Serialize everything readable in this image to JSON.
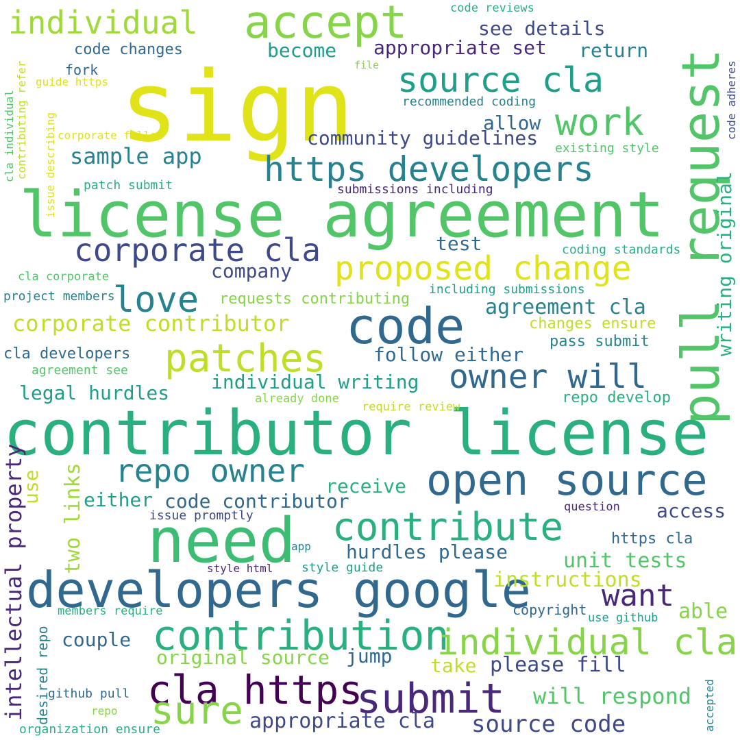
{
  "palette": {
    "background": "#ffffff",
    "yellow": "#dfe318",
    "lime": "#bddf26",
    "light-green": "#86d549",
    "green": "#52c569",
    "teal-green": "#2ab07f",
    "teal": "#1f9e89",
    "blue-teal": "#26828e",
    "slate": "#31688e",
    "indigo": "#3e4989",
    "purple": "#482878",
    "dark-purple": "#440154"
  },
  "words": [
    {
      "text": "sign",
      "weight": 1.0,
      "color": "#dfe318"
    },
    {
      "text": "license agreement",
      "weight": 0.92,
      "color": "#52c569"
    },
    {
      "text": "contributor license",
      "weight": 0.9,
      "color": "#2ab07f"
    },
    {
      "text": "need",
      "weight": 0.82,
      "color": "#3dbc74"
    },
    {
      "text": "pull request",
      "weight": 0.8,
      "color": "#52c569"
    },
    {
      "text": "developers google",
      "weight": 0.72,
      "color": "#31688e"
    },
    {
      "text": "code",
      "weight": 0.72,
      "color": "#31688e"
    },
    {
      "text": "accept",
      "weight": 0.68,
      "color": "#86d549"
    },
    {
      "text": "open source",
      "weight": 0.64,
      "color": "#31688e"
    },
    {
      "text": "contribution",
      "weight": 0.62,
      "color": "#2ab07f"
    },
    {
      "text": "submit",
      "weight": 0.62,
      "color": "#482878"
    },
    {
      "text": "cla https",
      "weight": 0.6,
      "color": "#440154"
    },
    {
      "text": "sure",
      "weight": 0.58,
      "color": "#86d549"
    },
    {
      "text": "patches",
      "weight": 0.56,
      "color": "#bddf26"
    },
    {
      "text": "contribute",
      "weight": 0.56,
      "color": "#2ab07f"
    },
    {
      "text": "individual cla",
      "weight": 0.54,
      "color": "#86d549"
    },
    {
      "text": "work",
      "weight": 0.54,
      "color": "#52c569"
    },
    {
      "text": "https developers",
      "weight": 0.5,
      "color": "#26828e"
    },
    {
      "text": "source cla",
      "weight": 0.5,
      "color": "#1f9e89"
    },
    {
      "text": "individual",
      "weight": 0.48,
      "color": "#a0da39"
    },
    {
      "text": "love",
      "weight": 0.52,
      "color": "#26828e"
    },
    {
      "text": "corporate cla",
      "weight": 0.48,
      "color": "#3e4989"
    },
    {
      "text": "repo owner",
      "weight": 0.48,
      "color": "#26828e"
    },
    {
      "text": "owner will",
      "weight": 0.48,
      "color": "#31688e"
    },
    {
      "text": "proposed change",
      "weight": 0.48,
      "color": "#dfe318"
    },
    {
      "text": "want",
      "weight": 0.46,
      "color": "#482878"
    },
    {
      "text": "intellectual property",
      "weight": 0.34,
      "color": "#482878"
    },
    {
      "text": "source code",
      "weight": 0.36,
      "color": "#3e4989"
    },
    {
      "text": "will respond",
      "weight": 0.34,
      "color": "#52c569"
    },
    {
      "text": "corporate contributor",
      "weight": 0.34,
      "color": "#bddf26"
    },
    {
      "text": "appropriate cla",
      "weight": 0.32,
      "color": "#3e4989"
    },
    {
      "text": "writing original",
      "weight": 0.3,
      "color": "#2ab07f"
    },
    {
      "text": "two links",
      "weight": 0.32,
      "color": "#a0da39"
    },
    {
      "text": "sample app",
      "weight": 0.32,
      "color": "#26828e"
    },
    {
      "text": "code contributor",
      "weight": 0.28,
      "color": "#31688e"
    },
    {
      "text": "original source",
      "weight": 0.28,
      "color": "#86d549"
    },
    {
      "text": "individual writing",
      "weight": 0.28,
      "color": "#1f9e89"
    },
    {
      "text": "agreement cla",
      "weight": 0.28,
      "color": "#26828e"
    },
    {
      "text": "unit tests",
      "weight": 0.28,
      "color": "#52c569"
    },
    {
      "text": "instructions",
      "weight": 0.28,
      "color": "#bddf26"
    },
    {
      "text": "please fill",
      "weight": 0.28,
      "color": "#3e4989"
    },
    {
      "text": "see details",
      "weight": 0.26,
      "color": "#3e4989"
    },
    {
      "text": "appropriate set",
      "weight": 0.26,
      "color": "#482878"
    },
    {
      "text": "hurdles please",
      "weight": 0.26,
      "color": "#31688e"
    },
    {
      "text": "legal hurdles",
      "weight": 0.26,
      "color": "#1f9e89"
    },
    {
      "text": "community guidelines",
      "weight": 0.26,
      "color": "#3e4989"
    },
    {
      "text": "follow either",
      "weight": 0.26,
      "color": "#31688e"
    },
    {
      "text": "able",
      "weight": 0.26,
      "color": "#86d549"
    },
    {
      "text": "access",
      "weight": 0.24,
      "color": "#3e4989"
    },
    {
      "text": "couple",
      "weight": 0.26,
      "color": "#31688e"
    },
    {
      "text": "receive",
      "weight": 0.26,
      "color": "#2ab07f"
    },
    {
      "text": "either",
      "weight": 0.26,
      "color": "#1f9e89"
    },
    {
      "text": "jump",
      "weight": 0.26,
      "color": "#31688e"
    },
    {
      "text": "take",
      "weight": 0.26,
      "color": "#bddf26"
    },
    {
      "text": "become",
      "weight": 0.26,
      "color": "#1f9e89"
    },
    {
      "text": "return",
      "weight": 0.24,
      "color": "#26828e"
    },
    {
      "text": "allow",
      "weight": 0.24,
      "color": "#31688e"
    },
    {
      "text": "test",
      "weight": 0.24,
      "color": "#31688e"
    },
    {
      "text": "company",
      "weight": 0.24,
      "color": "#3e4989"
    },
    {
      "text": "use",
      "weight": 0.26,
      "color": "#bddf26"
    },
    {
      "text": "code changes",
      "weight": 0.2,
      "color": "#31688e"
    },
    {
      "text": "cla developers",
      "weight": 0.2,
      "color": "#31688e"
    },
    {
      "text": "requests contributing",
      "weight": 0.2,
      "color": "#86d549"
    },
    {
      "text": "changes ensure",
      "weight": 0.2,
      "color": "#bddf26"
    },
    {
      "text": "pass submit",
      "weight": 0.2,
      "color": "#26828e"
    },
    {
      "text": "repo develop",
      "weight": 0.2,
      "color": "#2ab07f"
    },
    {
      "text": "https cla",
      "weight": 0.2,
      "color": "#31688e"
    },
    {
      "text": "copyright",
      "weight": 0.18,
      "color": "#31688e"
    },
    {
      "text": "desired repo",
      "weight": 0.18,
      "color": "#26828e"
    },
    {
      "text": "fork",
      "weight": 0.18,
      "color": "#31688e"
    },
    {
      "text": "code reviews",
      "weight": 0.16,
      "color": "#2ab07f"
    },
    {
      "text": "recommended coding",
      "weight": 0.16,
      "color": "#26828e"
    },
    {
      "text": "existing style",
      "weight": 0.16,
      "color": "#52c569"
    },
    {
      "text": "submissions including",
      "weight": 0.16,
      "color": "#482878"
    },
    {
      "text": "coding standards",
      "weight": 0.16,
      "color": "#2ab07f"
    },
    {
      "text": "including submissions",
      "weight": 0.16,
      "color": "#1f9e89"
    },
    {
      "text": "patch submit",
      "weight": 0.16,
      "color": "#2ab07f"
    },
    {
      "text": "project members",
      "weight": 0.16,
      "color": "#26828e"
    },
    {
      "text": "cla corporate",
      "weight": 0.16,
      "color": "#52c569"
    },
    {
      "text": "agreement see",
      "weight": 0.16,
      "color": "#52c569"
    },
    {
      "text": "already done",
      "weight": 0.16,
      "color": "#86d549"
    },
    {
      "text": "require review",
      "weight": 0.16,
      "color": "#bddf26"
    },
    {
      "text": "issue promptly",
      "weight": 0.16,
      "color": "#3e4989"
    },
    {
      "text": "question",
      "weight": 0.16,
      "color": "#482878"
    },
    {
      "text": "app",
      "weight": 0.14,
      "color": "#26828e"
    },
    {
      "text": "style html",
      "weight": 0.14,
      "color": "#482878"
    },
    {
      "text": "style guide",
      "weight": 0.16,
      "color": "#1f9e89"
    },
    {
      "text": "members require",
      "weight": 0.16,
      "color": "#2ab07f"
    },
    {
      "text": "use github",
      "weight": 0.16,
      "color": "#1f9e89"
    },
    {
      "text": "github pull",
      "weight": 0.16,
      "color": "#31688e"
    },
    {
      "text": "repo",
      "weight": 0.14,
      "color": "#86d549"
    },
    {
      "text": "organization ensure",
      "weight": 0.16,
      "color": "#2ab07f"
    },
    {
      "text": "accepted",
      "weight": 0.14,
      "color": "#26828e"
    },
    {
      "text": "file",
      "weight": 0.14,
      "color": "#86d549"
    },
    {
      "text": "guide https",
      "weight": 0.14,
      "color": "#dfe318"
    },
    {
      "text": "corporate follow",
      "weight": 0.14,
      "color": "#dfe318"
    },
    {
      "text": "code adheres",
      "weight": 0.14,
      "color": "#3e4989"
    },
    {
      "text": "cla individual",
      "weight": 0.14,
      "color": "#52c569"
    },
    {
      "text": "contributing refer",
      "weight": 0.14,
      "color": "#bddf26"
    },
    {
      "text": "issue describing",
      "weight": 0.14,
      "color": "#dfe318"
    }
  ]
}
